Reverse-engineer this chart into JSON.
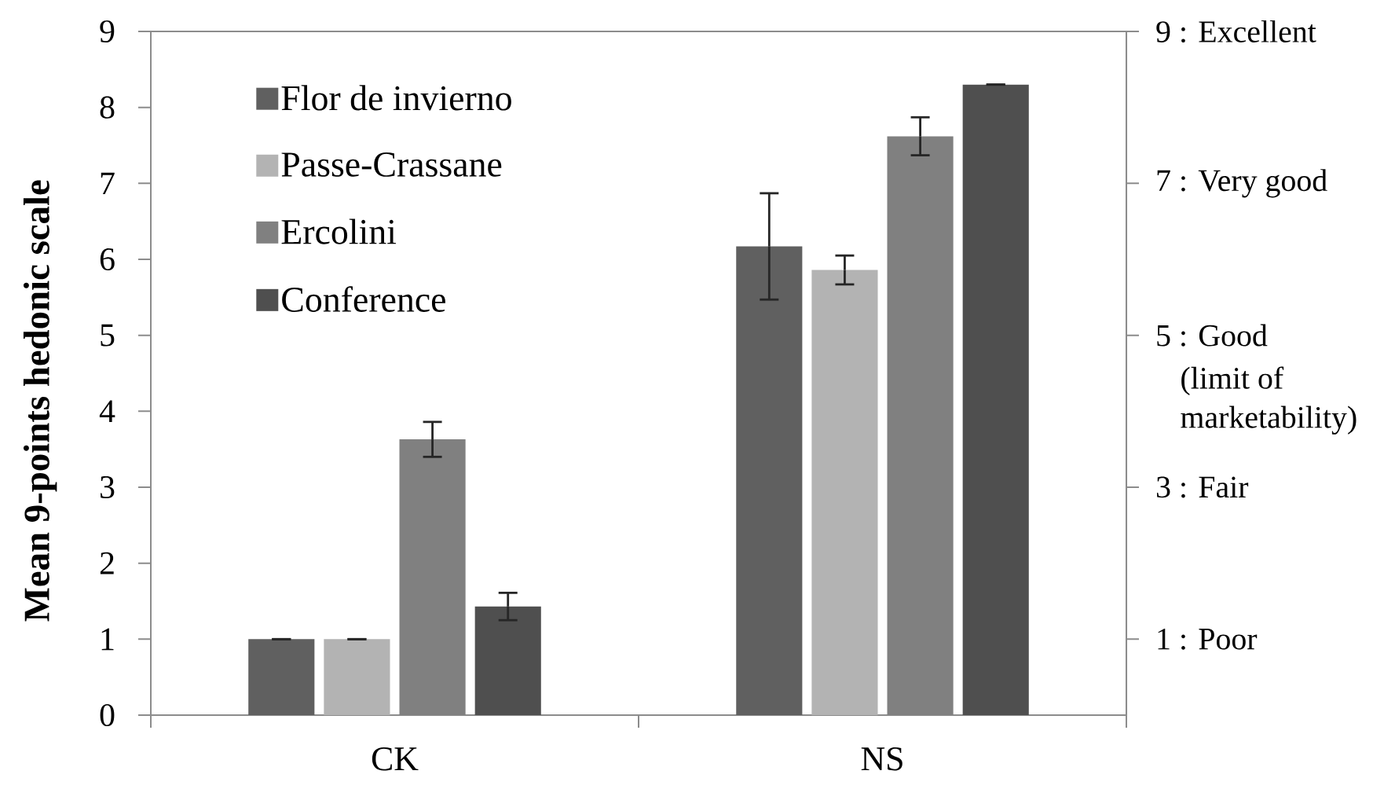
{
  "chart_data": {
    "type": "bar",
    "ylabel": "Mean 9-points hedonic scale",
    "categories": [
      "CK",
      "NS"
    ],
    "series": [
      {
        "name": "Flor de invierno",
        "color": "#606060",
        "values": [
          1.0,
          6.17
        ],
        "errors": [
          0,
          0.7
        ]
      },
      {
        "name": "Passe-Crassane",
        "color": "#b3b3b3",
        "values": [
          1.0,
          5.86
        ],
        "errors": [
          0,
          0.19
        ]
      },
      {
        "name": "Ercolini",
        "color": "#808080",
        "values": [
          3.63,
          7.62
        ],
        "errors": [
          0.23,
          0.25
        ]
      },
      {
        "name": "Conference",
        "color": "#4f4f4f",
        "values": [
          1.43,
          8.3
        ],
        "errors": [
          0.18,
          0
        ]
      }
    ],
    "ylim": [
      0,
      9
    ],
    "yticks": [
      0,
      1,
      2,
      3,
      4,
      5,
      6,
      7,
      8,
      9
    ],
    "y2lim": [
      0,
      9
    ],
    "y2ticks": [
      {
        "value": 1,
        "label": "1 : Poor"
      },
      {
        "value": 3,
        "label": "3 : Fair"
      },
      {
        "value": 5,
        "label": "5 : Good"
      },
      {
        "value": 7,
        "label": "7 : Very good"
      },
      {
        "value": 9,
        "label": "9 : Excellent"
      }
    ],
    "annotations": [
      "(limit of marketability)"
    ],
    "legend": "top left"
  }
}
